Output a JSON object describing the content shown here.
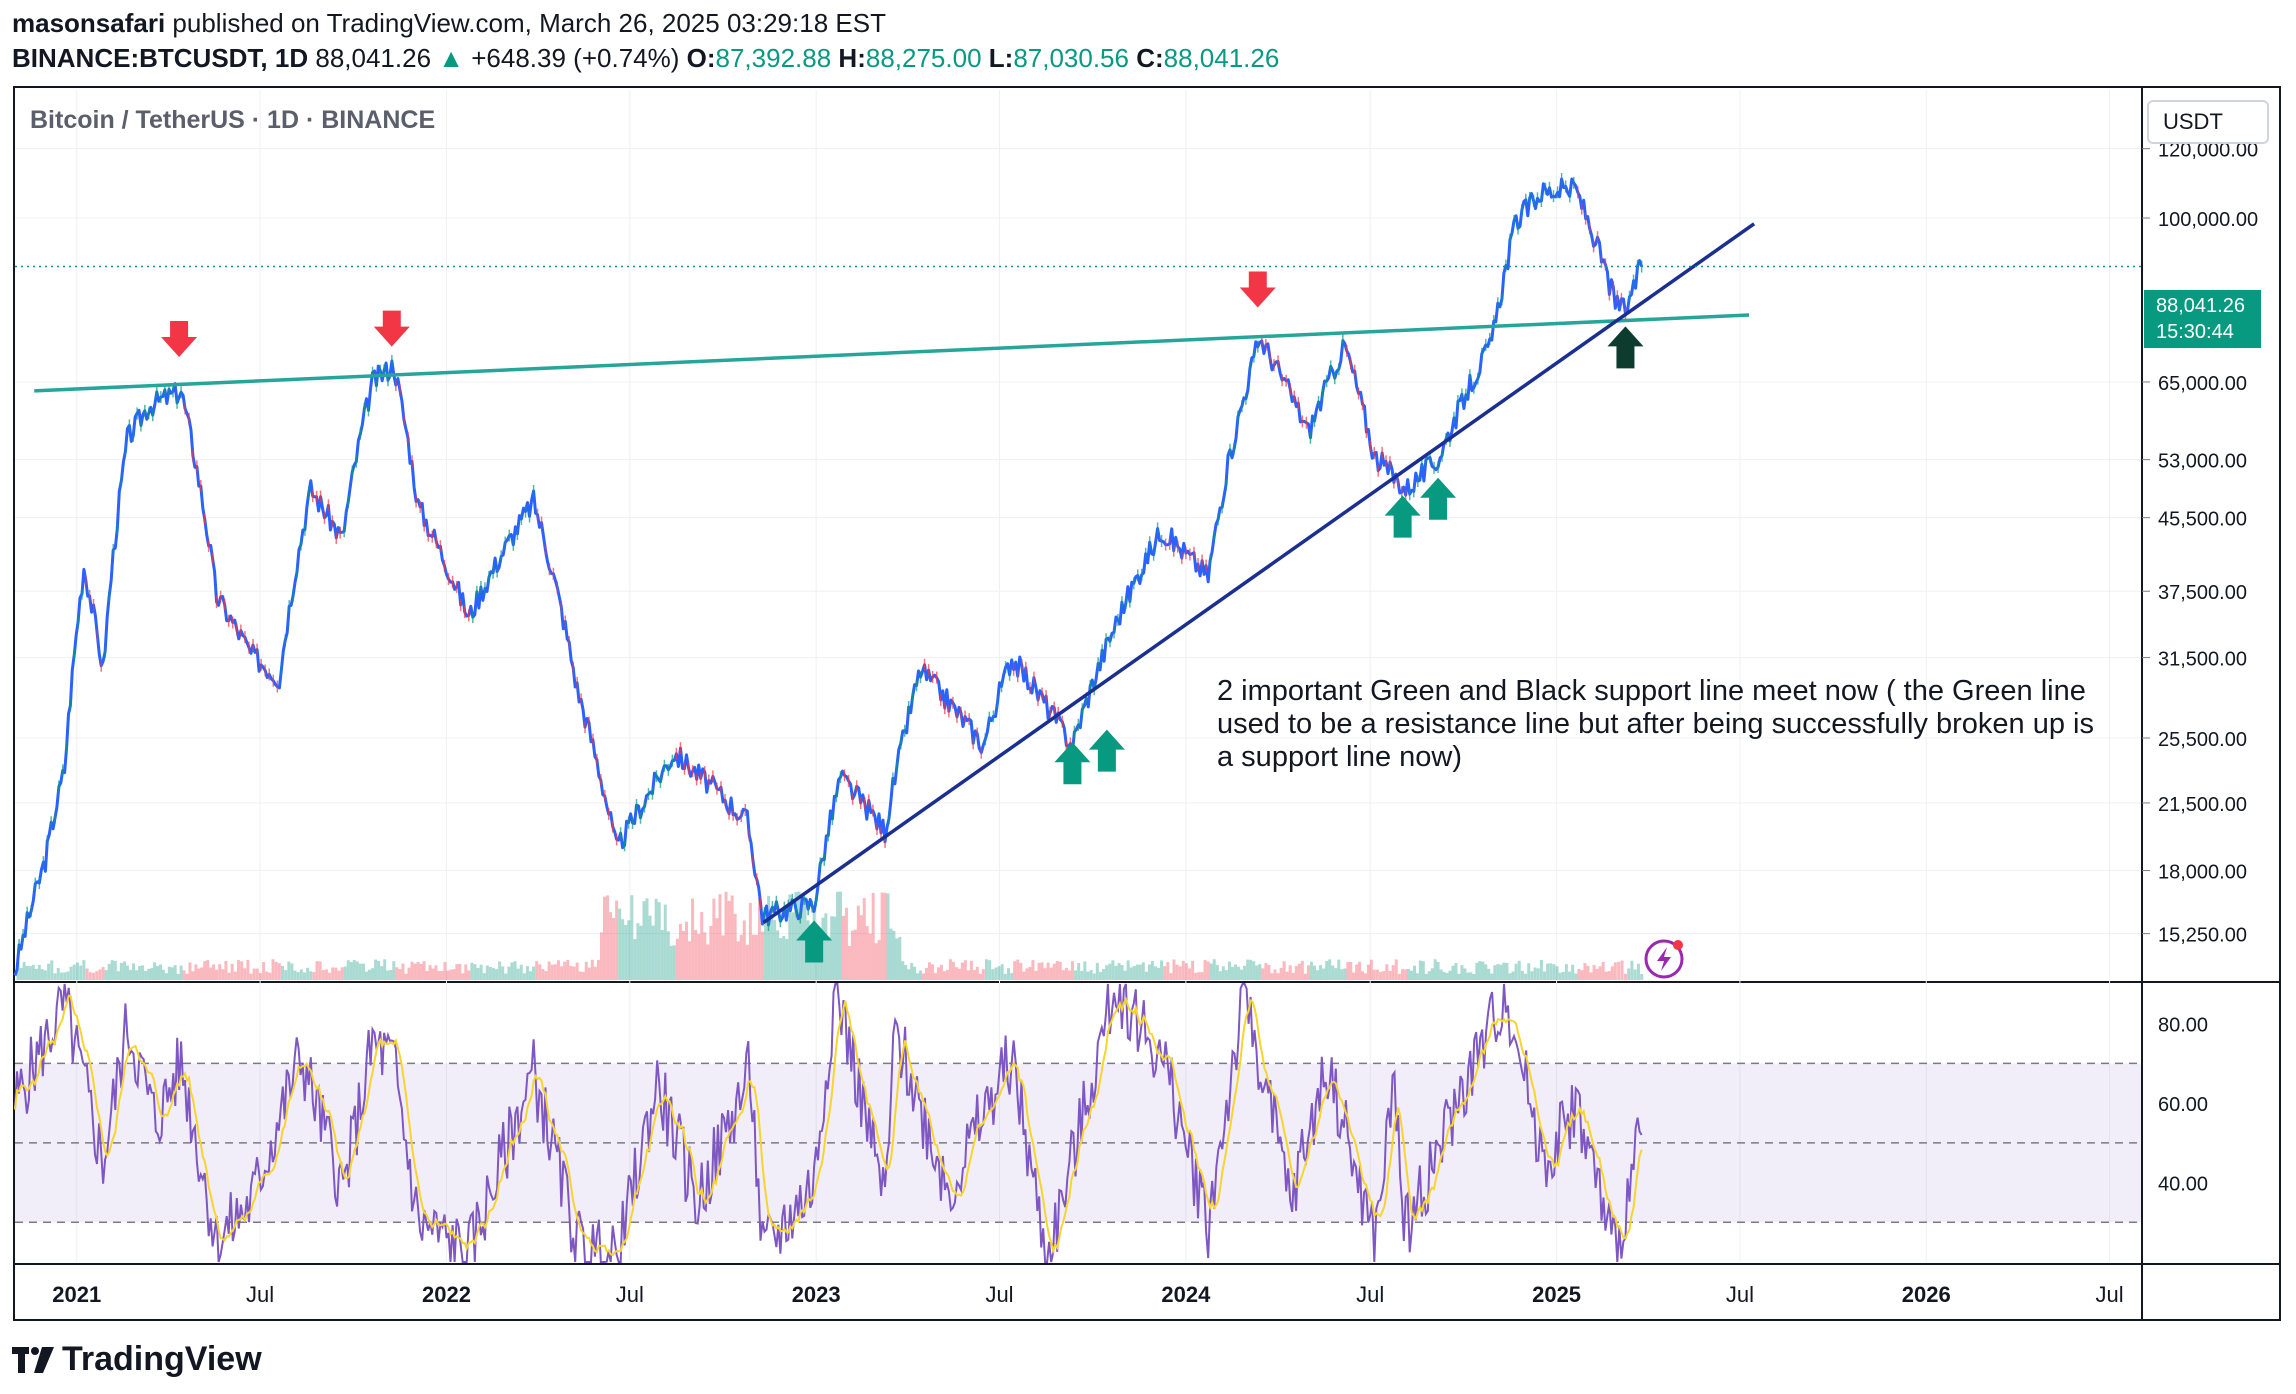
{
  "header": {
    "author": "masonsafari",
    "published_text": "published on TradingView.com, March 26, 2025 03:29:18 EST",
    "symbol": "BINANCE:BTCUSDT, 1D",
    "last": "88,041.26",
    "change_arrow": "▲",
    "change": "+648.39 (+0.74%)",
    "o_label": "O:",
    "o_value": "87,392.88",
    "h_label": "H:",
    "h_value": "88,275.00",
    "l_label": "L:",
    "l_value": "87,030.56",
    "c_label": "C:",
    "c_value": "88,041.26"
  },
  "chart_title": "Bitcoin / TetherUS · 1D · BINANCE",
  "currency_button": "USDT",
  "price_tag": {
    "price": "88,041.26",
    "countdown": "15:30:44"
  },
  "annotation": "2 important Green and Black  support line meet now ( the Green line used to be a resistance line but after being successfully broken up is a support line now)",
  "footer_logo": "TradingView",
  "colors": {
    "up": "#089981",
    "down": "#f23645",
    "rsi": "#7e57c2",
    "rsi_ma": "#f7d42e",
    "resistance": "#26a69a",
    "support": "#1a2f8f",
    "arrow_dark": "#0d3b2e"
  },
  "chart_data": {
    "type": "line",
    "scale": "log",
    "x_ticks": [
      "2021",
      "Jul",
      "2022",
      "Jul",
      "2023",
      "Jul",
      "2024",
      "Jul",
      "2025",
      "Jul",
      "2026",
      "Jul"
    ],
    "y_ticks": [
      "120,000.00",
      "100,000.00",
      "65,000.00",
      "53,000.00",
      "45,500.00",
      "37,500.00",
      "31,500.00",
      "25,500.00",
      "21,500.00",
      "18,000.00",
      "15,250.00"
    ],
    "y_tick_values": [
      120000,
      100000,
      65000,
      53000,
      45500,
      37500,
      31500,
      25500,
      21500,
      18000,
      15250
    ],
    "ylim": [
      13500,
      140000
    ],
    "price_series": [
      {
        "x": "2020-11-01",
        "y": 13800
      },
      {
        "x": "2020-12-01",
        "y": 18500
      },
      {
        "x": "2020-12-20",
        "y": 23500
      },
      {
        "x": "2021-01-08",
        "y": 40000
      },
      {
        "x": "2021-01-27",
        "y": 30500
      },
      {
        "x": "2021-02-20",
        "y": 56000
      },
      {
        "x": "2021-03-13",
        "y": 61000
      },
      {
        "x": "2021-04-14",
        "y": 63500
      },
      {
        "x": "2021-05-19",
        "y": 37000
      },
      {
        "x": "2021-06-22",
        "y": 31800
      },
      {
        "x": "2021-07-20",
        "y": 29800
      },
      {
        "x": "2021-08-20",
        "y": 49000
      },
      {
        "x": "2021-09-20",
        "y": 43000
      },
      {
        "x": "2021-10-20",
        "y": 65000
      },
      {
        "x": "2021-11-10",
        "y": 68000
      },
      {
        "x": "2021-12-04",
        "y": 47000
      },
      {
        "x": "2022-01-23",
        "y": 35000
      },
      {
        "x": "2022-03-28",
        "y": 47500
      },
      {
        "x": "2022-05-10",
        "y": 29000
      },
      {
        "x": "2022-06-18",
        "y": 19000
      },
      {
        "x": "2022-08-14",
        "y": 24500
      },
      {
        "x": "2022-10-25",
        "y": 20500
      },
      {
        "x": "2022-11-09",
        "y": 16000
      },
      {
        "x": "2022-12-30",
        "y": 16500
      },
      {
        "x": "2023-01-25",
        "y": 23000
      },
      {
        "x": "2023-03-10",
        "y": 20000
      },
      {
        "x": "2023-04-14",
        "y": 30500
      },
      {
        "x": "2023-06-15",
        "y": 25000
      },
      {
        "x": "2023-07-13",
        "y": 31500
      },
      {
        "x": "2023-09-11",
        "y": 25000
      },
      {
        "x": "2023-10-24",
        "y": 34500
      },
      {
        "x": "2023-12-08",
        "y": 44000
      },
      {
        "x": "2024-01-23",
        "y": 39000
      },
      {
        "x": "2024-03-14",
        "y": 73000
      },
      {
        "x": "2024-05-01",
        "y": 57000
      },
      {
        "x": "2024-06-06",
        "y": 71500
      },
      {
        "x": "2024-07-05",
        "y": 53500
      },
      {
        "x": "2024-08-05",
        "y": 49000
      },
      {
        "x": "2024-09-06",
        "y": 53000
      },
      {
        "x": "2024-10-29",
        "y": 72000
      },
      {
        "x": "2024-11-22",
        "y": 99000
      },
      {
        "x": "2024-12-17",
        "y": 107000
      },
      {
        "x": "2025-01-20",
        "y": 108000
      },
      {
        "x": "2025-02-28",
        "y": 80000
      },
      {
        "x": "2025-03-10",
        "y": 78500
      },
      {
        "x": "2025-03-26",
        "y": 88041.26
      }
    ],
    "resistance_line": [
      {
        "x": "2020-11-20",
        "y": 63500
      },
      {
        "x": "2025-07-10",
        "y": 77500
      }
    ],
    "support_line": [
      {
        "x": "2022-11-10",
        "y": 15700
      },
      {
        "x": "2025-07-15",
        "y": 98500
      }
    ],
    "rsi": {
      "ticks": [
        "80.00",
        "60.00",
        "40.00"
      ],
      "tick_values": [
        80,
        60,
        40
      ],
      "band": [
        30,
        70
      ],
      "ylim": [
        20,
        90
      ],
      "series": [
        {
          "x": "2020-11-01",
          "y": 60
        },
        {
          "x": "2020-12-20",
          "y": 85
        },
        {
          "x": "2021-01-27",
          "y": 45
        },
        {
          "x": "2021-02-20",
          "y": 80
        },
        {
          "x": "2021-03-20",
          "y": 55
        },
        {
          "x": "2021-04-14",
          "y": 70
        },
        {
          "x": "2021-05-19",
          "y": 25
        },
        {
          "x": "2021-06-22",
          "y": 35
        },
        {
          "x": "2021-08-10",
          "y": 72
        },
        {
          "x": "2021-09-21",
          "y": 38
        },
        {
          "x": "2021-10-20",
          "y": 75
        },
        {
          "x": "2021-11-10",
          "y": 70
        },
        {
          "x": "2021-12-04",
          "y": 30
        },
        {
          "x": "2022-01-23",
          "y": 22
        },
        {
          "x": "2022-03-28",
          "y": 68
        },
        {
          "x": "2022-05-10",
          "y": 25
        },
        {
          "x": "2022-06-18",
          "y": 20
        },
        {
          "x": "2022-07-28",
          "y": 65
        },
        {
          "x": "2022-09-06",
          "y": 35
        },
        {
          "x": "2022-10-28",
          "y": 68
        },
        {
          "x": "2022-11-09",
          "y": 22
        },
        {
          "x": "2022-12-30",
          "y": 40
        },
        {
          "x": "2023-01-20",
          "y": 90
        },
        {
          "x": "2023-03-10",
          "y": 35
        },
        {
          "x": "2023-03-20",
          "y": 78
        },
        {
          "x": "2023-05-12",
          "y": 38
        },
        {
          "x": "2023-07-13",
          "y": 72
        },
        {
          "x": "2023-08-17",
          "y": 20
        },
        {
          "x": "2023-10-24",
          "y": 90
        },
        {
          "x": "2023-12-10",
          "y": 70
        },
        {
          "x": "2024-01-23",
          "y": 30
        },
        {
          "x": "2024-02-28",
          "y": 88
        },
        {
          "x": "2024-04-13",
          "y": 35
        },
        {
          "x": "2024-05-20",
          "y": 70
        },
        {
          "x": "2024-07-05",
          "y": 25
        },
        {
          "x": "2024-07-25",
          "y": 65
        },
        {
          "x": "2024-08-05",
          "y": 28
        },
        {
          "x": "2024-09-28",
          "y": 62
        },
        {
          "x": "2024-11-12",
          "y": 88
        },
        {
          "x": "2024-12-20",
          "y": 45
        },
        {
          "x": "2025-01-20",
          "y": 60
        },
        {
          "x": "2025-02-28",
          "y": 22
        },
        {
          "x": "2025-03-26",
          "y": 52
        }
      ]
    },
    "markers": [
      {
        "type": "down",
        "x": "2021-04-12",
        "y": 72000
      },
      {
        "type": "down",
        "x": "2021-11-08",
        "y": 74000
      },
      {
        "type": "down",
        "x": "2024-03-12",
        "y": 82000
      },
      {
        "type": "up",
        "x": "2022-12-30",
        "y": 14900
      },
      {
        "type": "up",
        "x": "2023-09-11",
        "y": 23800
      },
      {
        "type": "up",
        "x": "2023-10-15",
        "y": 24600
      },
      {
        "type": "up",
        "x": "2024-08-02",
        "y": 45500
      },
      {
        "type": "up",
        "x": "2024-09-06",
        "y": 47700
      },
      {
        "type": "up-dark",
        "x": "2025-03-10",
        "y": 71000
      }
    ]
  }
}
